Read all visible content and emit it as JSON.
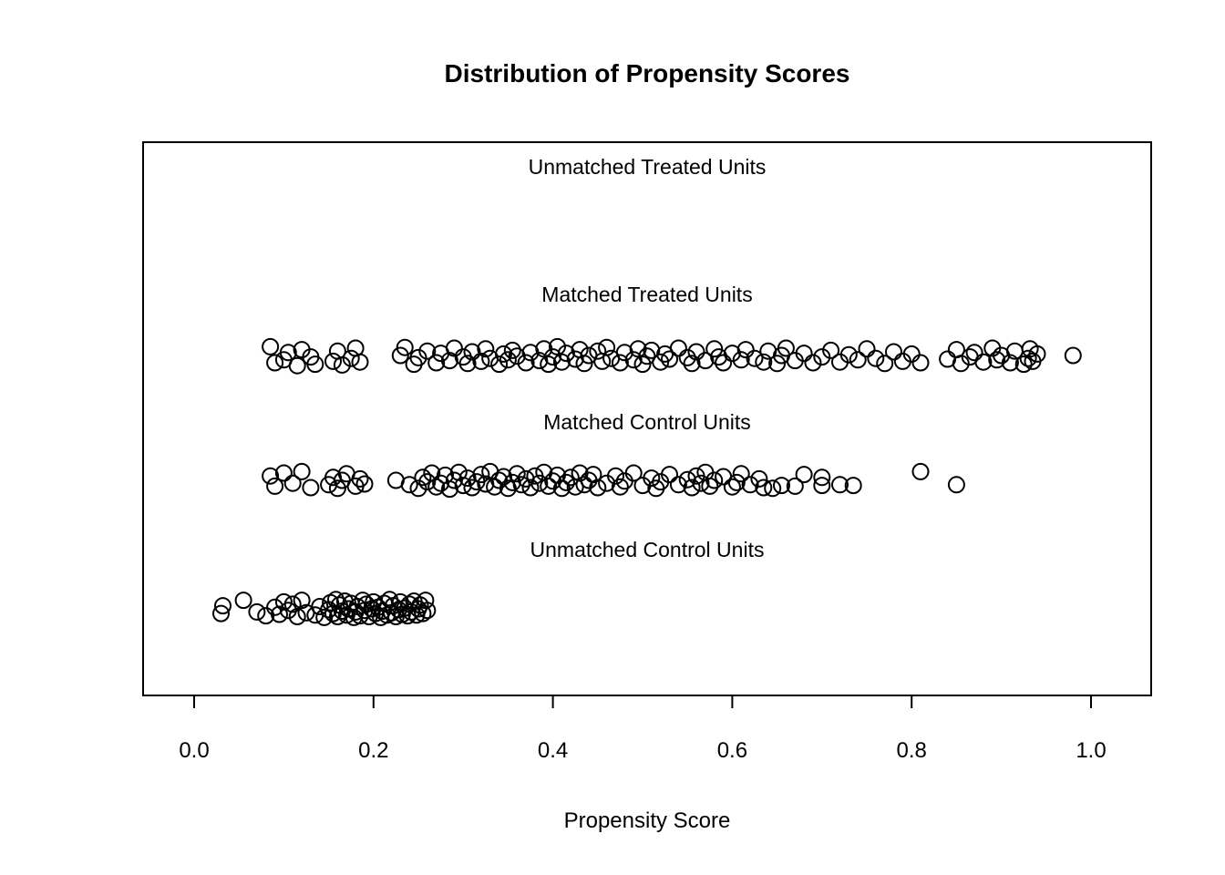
{
  "title": "Distribution of Propensity Scores",
  "chart_data": {
    "type": "scatter",
    "subtype": "jitter-strip-plot",
    "title": "Distribution of Propensity Scores",
    "xlabel": "Propensity Score",
    "xlim": [
      0.0,
      1.0
    ],
    "x_ticks": [
      0.0,
      0.2,
      0.4,
      0.6,
      0.8,
      1.0
    ],
    "x_tick_labels": [
      "0.0",
      "0.2",
      "0.4",
      "0.6",
      "0.8",
      "1.0"
    ],
    "grid": false,
    "legend": "none",
    "marker": "open-circle",
    "marker_color": "#000000",
    "background_color": "#ffffff",
    "rows": [
      {
        "label": "Unmatched Treated Units",
        "points": []
      },
      {
        "label": "Matched Treated Units",
        "points": [
          [
            0.085,
            -0.6
          ],
          [
            0.09,
            0.5
          ],
          [
            0.1,
            0.3
          ],
          [
            0.105,
            -0.2
          ],
          [
            0.115,
            0.7
          ],
          [
            0.12,
            -0.4
          ],
          [
            0.13,
            0.1
          ],
          [
            0.135,
            0.6
          ],
          [
            0.155,
            0.4
          ],
          [
            0.16,
            -0.3
          ],
          [
            0.165,
            0.65
          ],
          [
            0.175,
            0.2
          ],
          [
            0.18,
            -0.5
          ],
          [
            0.185,
            0.45
          ],
          [
            0.23,
            0.0
          ],
          [
            0.235,
            -0.55
          ],
          [
            0.245,
            0.6
          ],
          [
            0.25,
            0.15
          ],
          [
            0.26,
            -0.3
          ],
          [
            0.27,
            0.5
          ],
          [
            0.275,
            -0.15
          ],
          [
            0.285,
            0.35
          ],
          [
            0.29,
            -0.5
          ],
          [
            0.3,
            0.1
          ],
          [
            0.305,
            0.55
          ],
          [
            0.31,
            -0.25
          ],
          [
            0.32,
            0.4
          ],
          [
            0.325,
            -0.45
          ],
          [
            0.33,
            0.2
          ],
          [
            0.34,
            0.6
          ],
          [
            0.345,
            -0.1
          ],
          [
            0.35,
            0.3
          ],
          [
            0.355,
            -0.35
          ],
          [
            0.36,
            0.05
          ],
          [
            0.37,
            0.5
          ],
          [
            0.375,
            -0.2
          ],
          [
            0.385,
            0.35
          ],
          [
            0.39,
            -0.45
          ],
          [
            0.395,
            0.6
          ],
          [
            0.4,
            0.1
          ],
          [
            0.405,
            -0.6
          ],
          [
            0.41,
            0.45
          ],
          [
            0.415,
            -0.15
          ],
          [
            0.425,
            0.25
          ],
          [
            0.43,
            -0.4
          ],
          [
            0.435,
            0.55
          ],
          [
            0.44,
            0.0
          ],
          [
            0.45,
            -0.3
          ],
          [
            0.455,
            0.4
          ],
          [
            0.46,
            -0.55
          ],
          [
            0.465,
            0.2
          ],
          [
            0.475,
            0.5
          ],
          [
            0.48,
            -0.2
          ],
          [
            0.49,
            0.3
          ],
          [
            0.495,
            -0.45
          ],
          [
            0.5,
            0.6
          ],
          [
            0.505,
            0.05
          ],
          [
            0.51,
            -0.35
          ],
          [
            0.52,
            0.45
          ],
          [
            0.525,
            -0.1
          ],
          [
            0.53,
            0.25
          ],
          [
            0.54,
            -0.5
          ],
          [
            0.55,
            0.15
          ],
          [
            0.555,
            0.55
          ],
          [
            0.56,
            -0.25
          ],
          [
            0.57,
            0.35
          ],
          [
            0.58,
            -0.45
          ],
          [
            0.585,
            0.1
          ],
          [
            0.59,
            0.5
          ],
          [
            0.6,
            -0.15
          ],
          [
            0.61,
            0.3
          ],
          [
            0.615,
            -0.4
          ],
          [
            0.625,
            0.2
          ],
          [
            0.635,
            0.45
          ],
          [
            0.64,
            -0.3
          ],
          [
            0.65,
            0.55
          ],
          [
            0.655,
            0.0
          ],
          [
            0.66,
            -0.5
          ],
          [
            0.67,
            0.35
          ],
          [
            0.68,
            -0.15
          ],
          [
            0.69,
            0.5
          ],
          [
            0.7,
            0.1
          ],
          [
            0.71,
            -0.35
          ],
          [
            0.72,
            0.45
          ],
          [
            0.73,
            -0.05
          ],
          [
            0.74,
            0.3
          ],
          [
            0.75,
            -0.45
          ],
          [
            0.76,
            0.2
          ],
          [
            0.77,
            0.55
          ],
          [
            0.78,
            -0.25
          ],
          [
            0.79,
            0.4
          ],
          [
            0.8,
            -0.1
          ],
          [
            0.81,
            0.5
          ],
          [
            0.84,
            0.25
          ],
          [
            0.85,
            -0.4
          ],
          [
            0.855,
            0.55
          ],
          [
            0.865,
            0.1
          ],
          [
            0.87,
            -0.2
          ],
          [
            0.88,
            0.45
          ],
          [
            0.89,
            -0.5
          ],
          [
            0.895,
            0.3
          ],
          [
            0.9,
            0.0
          ],
          [
            0.91,
            0.5
          ],
          [
            0.915,
            -0.3
          ],
          [
            0.925,
            0.6
          ],
          [
            0.93,
            0.2
          ],
          [
            0.932,
            -0.45
          ],
          [
            0.935,
            0.4
          ],
          [
            0.94,
            -0.1
          ],
          [
            0.98,
            0.0
          ]
        ]
      },
      {
        "label": "Matched Control Units",
        "points": [
          [
            0.085,
            -0.3
          ],
          [
            0.09,
            0.4
          ],
          [
            0.1,
            -0.5
          ],
          [
            0.11,
            0.2
          ],
          [
            0.12,
            -0.6
          ],
          [
            0.13,
            0.5
          ],
          [
            0.15,
            0.3
          ],
          [
            0.155,
            -0.2
          ],
          [
            0.16,
            0.55
          ],
          [
            0.165,
            0.0
          ],
          [
            0.17,
            -0.45
          ],
          [
            0.18,
            0.4
          ],
          [
            0.185,
            -0.1
          ],
          [
            0.19,
            0.25
          ],
          [
            0.225,
            0.0
          ],
          [
            0.24,
            0.3
          ],
          [
            0.25,
            0.55
          ],
          [
            0.255,
            -0.2
          ],
          [
            0.26,
            0.1
          ],
          [
            0.265,
            -0.5
          ],
          [
            0.27,
            0.45
          ],
          [
            0.275,
            0.2
          ],
          [
            0.28,
            -0.35
          ],
          [
            0.285,
            0.6
          ],
          [
            0.29,
            0.0
          ],
          [
            0.295,
            -0.55
          ],
          [
            0.3,
            0.35
          ],
          [
            0.305,
            -0.15
          ],
          [
            0.31,
            0.5
          ],
          [
            0.315,
            0.1
          ],
          [
            0.32,
            -0.4
          ],
          [
            0.325,
            0.25
          ],
          [
            0.33,
            -0.6
          ],
          [
            0.335,
            0.45
          ],
          [
            0.34,
            0.0
          ],
          [
            0.345,
            -0.25
          ],
          [
            0.35,
            0.55
          ],
          [
            0.355,
            0.15
          ],
          [
            0.36,
            -0.45
          ],
          [
            0.365,
            0.3
          ],
          [
            0.37,
            -0.1
          ],
          [
            0.375,
            0.5
          ],
          [
            0.38,
            -0.3
          ],
          [
            0.385,
            0.2
          ],
          [
            0.39,
            -0.55
          ],
          [
            0.395,
            0.4
          ],
          [
            0.4,
            0.05
          ],
          [
            0.405,
            -0.35
          ],
          [
            0.41,
            0.55
          ],
          [
            0.415,
            0.15
          ],
          [
            0.42,
            -0.2
          ],
          [
            0.425,
            0.45
          ],
          [
            0.43,
            -0.5
          ],
          [
            0.435,
            0.3
          ],
          [
            0.44,
            0.0
          ],
          [
            0.445,
            -0.4
          ],
          [
            0.45,
            0.5
          ],
          [
            0.46,
            0.2
          ],
          [
            0.47,
            -0.3
          ],
          [
            0.475,
            0.45
          ],
          [
            0.48,
            0.05
          ],
          [
            0.49,
            -0.5
          ],
          [
            0.5,
            0.35
          ],
          [
            0.51,
            -0.15
          ],
          [
            0.515,
            0.55
          ],
          [
            0.52,
            0.1
          ],
          [
            0.53,
            -0.4
          ],
          [
            0.54,
            0.3
          ],
          [
            0.55,
            -0.05
          ],
          [
            0.555,
            0.5
          ],
          [
            0.56,
            -0.3
          ],
          [
            0.565,
            0.2
          ],
          [
            0.57,
            -0.55
          ],
          [
            0.575,
            0.4
          ],
          [
            0.58,
            0.0
          ],
          [
            0.59,
            -0.25
          ],
          [
            0.6,
            0.45
          ],
          [
            0.605,
            0.15
          ],
          [
            0.61,
            -0.45
          ],
          [
            0.62,
            0.3
          ],
          [
            0.63,
            -0.1
          ],
          [
            0.635,
            0.5
          ],
          [
            0.645,
            0.55
          ],
          [
            0.655,
            0.35
          ],
          [
            0.67,
            0.4
          ],
          [
            0.68,
            -0.4
          ],
          [
            0.7,
            0.35
          ],
          [
            0.7,
            -0.2
          ],
          [
            0.72,
            0.3
          ],
          [
            0.735,
            0.35
          ],
          [
            0.81,
            -0.6
          ],
          [
            0.85,
            0.3
          ]
        ]
      },
      {
        "label": "Unmatched Control Units",
        "points": [
          [
            0.03,
            0.3
          ],
          [
            0.032,
            -0.2
          ],
          [
            0.055,
            -0.55
          ],
          [
            0.07,
            0.2
          ],
          [
            0.08,
            0.45
          ],
          [
            0.09,
            -0.1
          ],
          [
            0.095,
            0.35
          ],
          [
            0.1,
            -0.45
          ],
          [
            0.105,
            0.1
          ],
          [
            0.11,
            -0.3
          ],
          [
            0.115,
            0.5
          ],
          [
            0.12,
            -0.55
          ],
          [
            0.125,
            0.25
          ],
          [
            0.135,
            0.4
          ],
          [
            0.14,
            -0.15
          ],
          [
            0.145,
            0.55
          ],
          [
            0.15,
            0.05
          ],
          [
            0.152,
            -0.4
          ],
          [
            0.155,
            0.3
          ],
          [
            0.158,
            -0.6
          ],
          [
            0.16,
            0.5
          ],
          [
            0.162,
            -0.25
          ],
          [
            0.165,
            0.15
          ],
          [
            0.168,
            -0.5
          ],
          [
            0.17,
            0.4
          ],
          [
            0.172,
            0.0
          ],
          [
            0.175,
            -0.35
          ],
          [
            0.178,
            0.55
          ],
          [
            0.18,
            0.2
          ],
          [
            0.182,
            -0.15
          ],
          [
            0.185,
            0.45
          ],
          [
            0.188,
            -0.55
          ],
          [
            0.19,
            0.1
          ],
          [
            0.192,
            -0.3
          ],
          [
            0.195,
            0.5
          ],
          [
            0.198,
            0.0
          ],
          [
            0.2,
            -0.45
          ],
          [
            0.202,
            0.3
          ],
          [
            0.205,
            -0.1
          ],
          [
            0.208,
            0.55
          ],
          [
            0.21,
            0.15
          ],
          [
            0.212,
            -0.35
          ],
          [
            0.215,
            0.4
          ],
          [
            0.218,
            -0.6
          ],
          [
            0.22,
            0.25
          ],
          [
            0.222,
            -0.2
          ],
          [
            0.225,
            0.5
          ],
          [
            0.228,
            0.05
          ],
          [
            0.23,
            -0.45
          ],
          [
            0.232,
            0.35
          ],
          [
            0.235,
            -0.05
          ],
          [
            0.238,
            0.45
          ],
          [
            0.24,
            -0.3
          ],
          [
            0.242,
            0.2
          ],
          [
            0.245,
            -0.5
          ],
          [
            0.248,
            0.4
          ],
          [
            0.25,
            0.0
          ],
          [
            0.252,
            -0.25
          ],
          [
            0.255,
            0.3
          ],
          [
            0.258,
            -0.55
          ],
          [
            0.26,
            0.1
          ]
        ]
      }
    ]
  }
}
